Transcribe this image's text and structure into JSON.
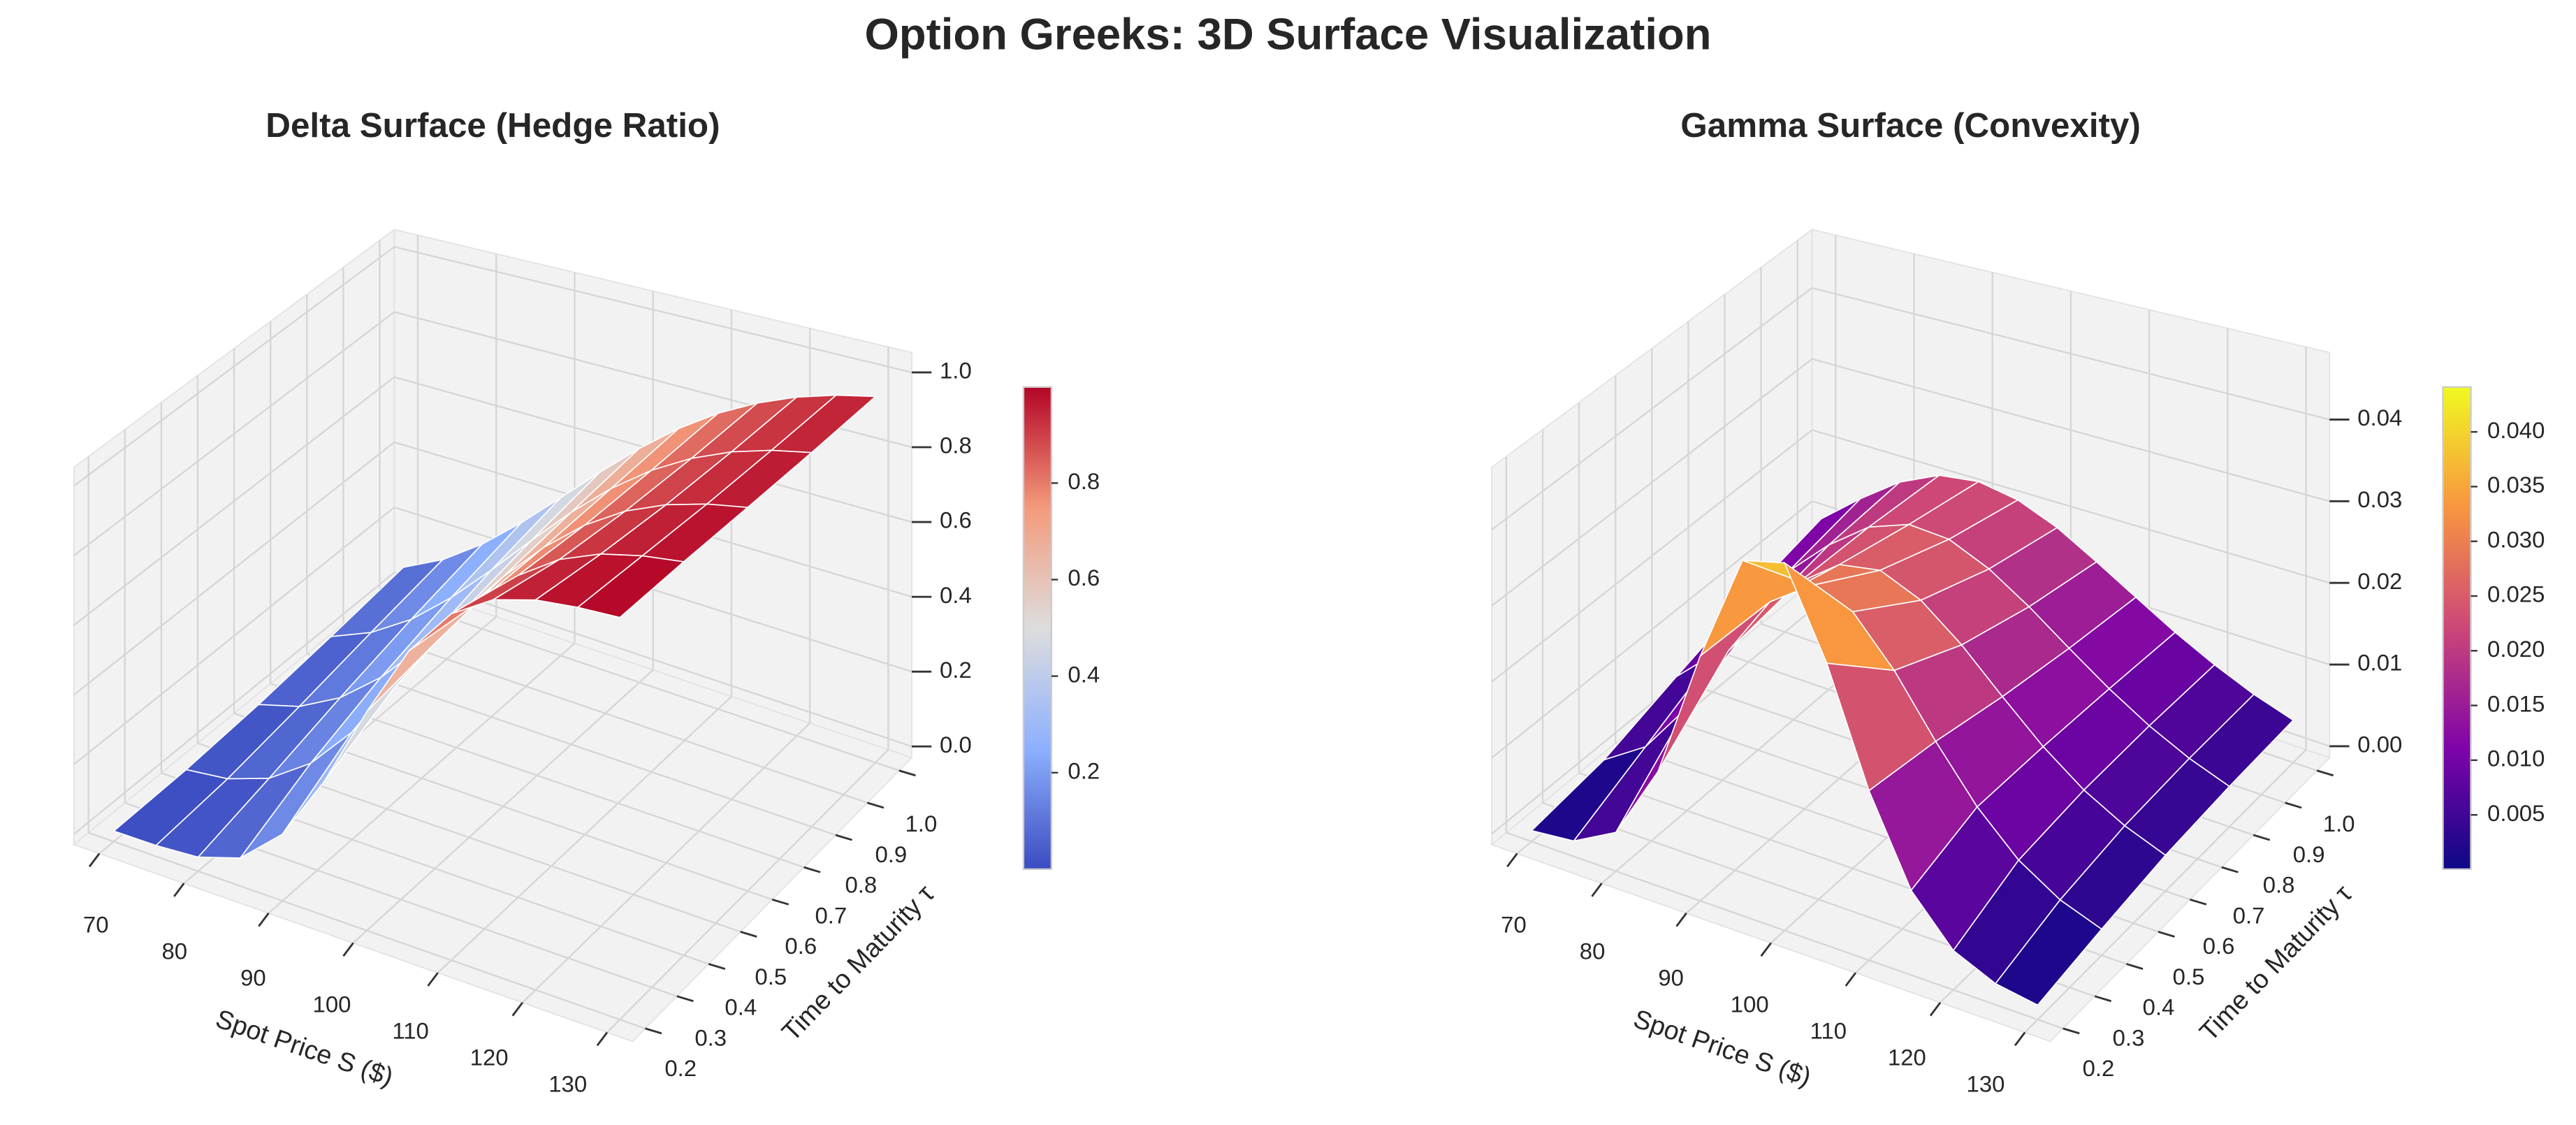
{
  "title": "Option Greeks: 3D Surface Visualization",
  "chart_data": [
    {
      "type": "surface",
      "title": "Delta Surface (Hedge Ratio)",
      "xlabel": "Spot Price S ($)",
      "ylabel": "Time to Maturity τ",
      "x": [
        70,
        75,
        80,
        85,
        90,
        95,
        100,
        105,
        110,
        115,
        120,
        125,
        130
      ],
      "y": [
        0.2,
        0.4,
        0.6,
        0.8,
        1
      ],
      "values": [
        [
          0.0001,
          0.001,
          0.0096,
          0.048,
          0.154,
          0.338,
          0.562,
          0.759,
          0.889,
          0.957,
          0.986,
          0.996,
          0.999
        ],
        [
          0.005,
          0.02,
          0.062,
          0.144,
          0.27,
          0.427,
          0.587,
          0.728,
          0.835,
          0.908,
          0.952,
          0.976,
          0.989
        ],
        [
          0.021,
          0.056,
          0.121,
          0.218,
          0.341,
          0.476,
          0.607,
          0.721,
          0.812,
          0.88,
          0.926,
          0.956,
          0.975
        ],
        [
          0.046,
          0.098,
          0.175,
          0.276,
          0.391,
          0.51,
          0.623,
          0.721,
          0.801,
          0.863,
          0.909,
          0.941,
          0.962
        ],
        [
          0.076,
          0.138,
          0.222,
          0.322,
          0.43,
          0.537,
          0.637,
          0.724,
          0.796,
          0.853,
          0.897,
          0.929,
          0.952
        ]
      ],
      "xlim": [
        67,
        133
      ],
      "ylim": [
        0.16,
        1.04
      ],
      "zlim": [
        -0.03,
        1.053
      ],
      "xticks": [
        70,
        80,
        90,
        100,
        110,
        120,
        130
      ],
      "yticks": [
        0.2,
        0.3,
        0.4,
        0.5,
        0.6,
        0.7,
        0.8,
        0.9,
        {
          "value": 1,
          "label": "1.0"
        }
      ],
      "zticks": [
        {
          "value": 0,
          "label": "0.0"
        },
        0.2,
        0.4,
        0.6,
        0.8,
        {
          "value": 1,
          "label": "1.0"
        }
      ],
      "colorbar_ticks": [
        0.2,
        0.4,
        0.6,
        0.8
      ],
      "colormap": [
        "#3b4cc0",
        "#8db0fe",
        "#dddddd",
        "#f49a7b",
        "#b40426"
      ],
      "edgecolor": "#ffffff",
      "grid": true
    },
    {
      "type": "surface",
      "title": "Gamma Surface (Convexity)",
      "xlabel": "Spot Price S ($)",
      "ylabel": "Time to Maturity τ",
      "x": [
        70,
        75,
        80,
        85,
        90,
        95,
        100,
        105,
        110,
        115,
        120,
        125,
        130
      ],
      "y": [
        0.2,
        0.4,
        0.6,
        0.8,
        1
      ],
      "values": [
        [
          4e-05,
          0.0006,
          0.0036,
          0.0132,
          0.0295,
          0.043,
          0.0441,
          0.0332,
          0.0192,
          0.0088,
          0.0033,
          0.0011,
          0.0003
        ],
        [
          0.0015,
          0.0051,
          0.012,
          0.0211,
          0.029,
          0.0326,
          0.0308,
          0.025,
          0.0178,
          0.0114,
          0.0066,
          0.0035,
          0.0017
        ],
        [
          0.0047,
          0.0098,
          0.0162,
          0.0224,
          0.0263,
          0.0271,
          0.0248,
          0.0207,
          0.0158,
          0.0112,
          0.0075,
          0.0048,
          0.0029
        ],
        [
          0.0078,
          0.0128,
          0.018,
          0.022,
          0.0239,
          0.0235,
          0.0212,
          0.0179,
          0.0142,
          0.0107,
          0.0077,
          0.0053,
          0.0035
        ],
        [
          0.0102,
          0.0147,
          0.0186,
          0.0211,
          0.0218,
          0.0209,
          0.0188,
          0.0159,
          0.0129,
          0.01,
          0.0075,
          0.0054,
          0.0038
        ]
      ],
      "xlim": [
        67,
        133
      ],
      "ylim": [
        0.16,
        1.04
      ],
      "zlim": [
        -0.0014,
        0.0482
      ],
      "xticks": [
        70,
        80,
        90,
        100,
        110,
        120,
        130
      ],
      "yticks": [
        0.2,
        0.3,
        0.4,
        0.5,
        0.6,
        0.7,
        0.8,
        0.9,
        {
          "value": 1,
          "label": "1.0"
        }
      ],
      "zticks": [
        {
          "value": 0,
          "label": "0.00"
        },
        0.01,
        0.02,
        0.03,
        0.04
      ],
      "colorbar_ticks": [
        0.005,
        {
          "value": 0.01,
          "label": "0.010"
        },
        0.015,
        {
          "value": 0.02,
          "label": "0.020"
        },
        0.025,
        {
          "value": 0.03,
          "label": "0.030"
        },
        0.035,
        {
          "value": 0.04,
          "label": "0.040"
        }
      ],
      "colormap": [
        "#0d0887",
        "#7e03a8",
        "#cc4778",
        "#f89540",
        "#f0f921"
      ],
      "edgecolor": "#ffffff",
      "grid": true
    }
  ]
}
